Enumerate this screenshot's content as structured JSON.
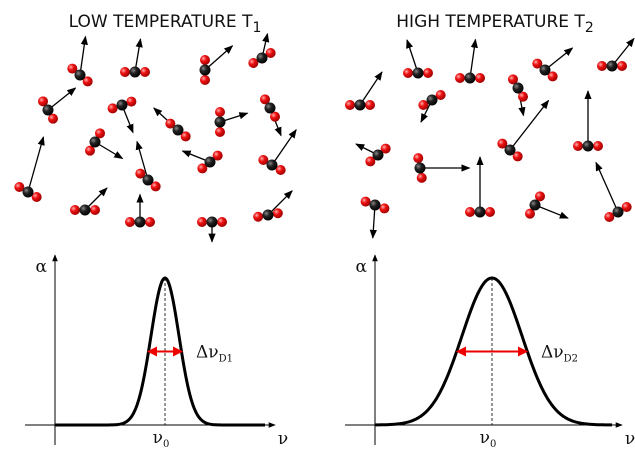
{
  "panels": [
    {
      "title": "LOW TEMPERATURE T",
      "title_sub": "1",
      "y_label": "α",
      "x_label": "ν",
      "center_label": "ν",
      "center_sub": "0",
      "width_label": "Δν",
      "width_sub": "D1"
    },
    {
      "title": "HIGH TEMPERATURE T",
      "title_sub": "2",
      "y_label": "α",
      "x_label": "ν",
      "center_label": "ν",
      "center_sub": "0",
      "width_label": "Δν",
      "width_sub": "D2"
    }
  ]
}
